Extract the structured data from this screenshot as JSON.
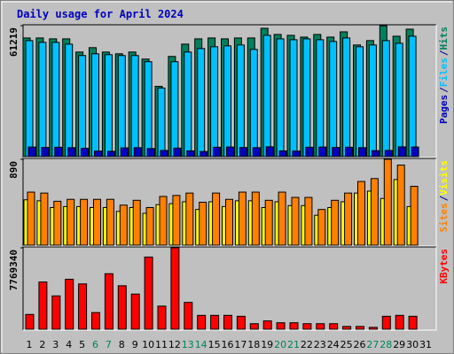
{
  "chart_data": {
    "type": "bar",
    "title": "Daily usage for April 2024",
    "categories": [
      "1",
      "2",
      "3",
      "4",
      "5",
      "6",
      "7",
      "8",
      "9",
      "10",
      "11",
      "12",
      "13",
      "14",
      "15",
      "16",
      "17",
      "18",
      "19",
      "20",
      "21",
      "22",
      "23",
      "24",
      "25",
      "26",
      "27",
      "28",
      "29",
      "30",
      "31"
    ],
    "category_colors": [
      "#000000",
      "#000000",
      "#000000",
      "#000000",
      "#000000",
      "#00805c",
      "#00805c",
      "#000000",
      "#000000",
      "#000000",
      "#000000",
      "#000000",
      "#00805c",
      "#00805c",
      "#000000",
      "#000000",
      "#000000",
      "#000000",
      "#000000",
      "#00805c",
      "#00805c",
      "#000000",
      "#000000",
      "#000000",
      "#000000",
      "#000000",
      "#00805c",
      "#00805c",
      "#000000",
      "#000000",
      "#000000"
    ],
    "legend_separator": "/",
    "panels": [
      {
        "ylim": [
          0,
          61219
        ],
        "yticks": [
          61219
        ],
        "series": [
          {
            "name": "Hits",
            "color": "#00805c",
            "values": [
              55470,
              55470,
              55060,
              55060,
              48890,
              50950,
              48890,
              48070,
              48890,
              45610,
              32870,
              46840,
              52590,
              55060,
              55470,
              55060,
              55470,
              55470,
              59990,
              57110,
              56700,
              55880,
              57110,
              55880,
              58340,
              52180,
              54240,
              61219,
              56290,
              59580,
              null
            ]
          },
          {
            "name": "Files",
            "color": "#00c0ff",
            "values": [
              54230,
              53410,
              53410,
              52590,
              47250,
              48070,
              47660,
              47250,
              47250,
              44370,
              32050,
              44370,
              48890,
              50540,
              51360,
              51770,
              52180,
              50120,
              56700,
              55060,
              54640,
              55060,
              54640,
              53820,
              55470,
              51360,
              52180,
              54230,
              53000,
              56290,
              null
            ]
          },
          {
            "name": "Pages",
            "color": "#0000c0",
            "values": [
              4500,
              4300,
              4400,
              4200,
              3900,
              2600,
              2500,
              4100,
              4200,
              3800,
              2900,
              4000,
              2700,
              2400,
              4400,
              4500,
              4300,
              4200,
              4600,
              2700,
              2600,
              4400,
              4500,
              4300,
              4400,
              4200,
              2800,
              2900,
              4600,
              4500,
              null
            ]
          }
        ]
      },
      {
        "ylim": [
          0,
          890
        ],
        "yticks": [
          890
        ],
        "series": [
          {
            "name": "Visits",
            "color": "#ffff00",
            "values": [
              470,
              460,
              390,
              400,
              400,
              390,
              390,
              350,
              390,
              330,
              420,
              430,
              450,
              370,
              450,
              400,
              460,
              460,
              390,
              450,
              410,
              410,
              310,
              390,
              450,
              540,
              560,
              484,
              680,
              400,
              null
            ]
          },
          {
            "name": "Sites",
            "color": "#ff8000",
            "values": [
              550,
              540,
              455,
              475,
              475,
              475,
              475,
              415,
              465,
              390,
              505,
              515,
              540,
              445,
              540,
              475,
              550,
              550,
              465,
              550,
              495,
              495,
              370,
              465,
              540,
              660,
              690,
              890,
              830,
              610,
              null
            ]
          }
        ]
      },
      {
        "ylim": [
          0,
          7769340
        ],
        "yticks": [
          7769340
        ],
        "series": [
          {
            "name": "KBytes",
            "color": "#ff0000",
            "values": [
              1412600,
              4502700,
              3178400,
              4767600,
              4326100,
              1589200,
              5297300,
              4149500,
              3354900,
              6886500,
              2207200,
              7769340,
              2560400,
              1324300,
              1324300,
              1324300,
              1236000,
              529700,
              794600,
              618000,
              618000,
              529700,
              529700,
              529700,
              264900,
              264900,
              176600,
              1236000,
              1324300,
              1236000,
              null
            ]
          }
        ]
      }
    ]
  }
}
